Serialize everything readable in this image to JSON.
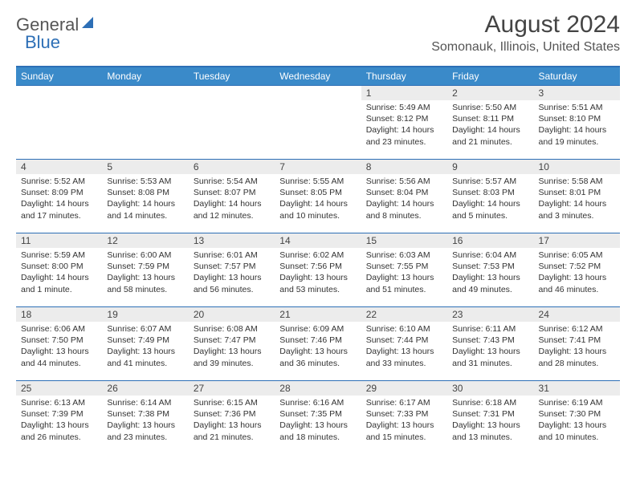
{
  "logo": {
    "general": "General",
    "blue": "Blue",
    "accent": "#2d6fb6"
  },
  "title": "August 2024",
  "location": "Somonauk, Illinois, United States",
  "colors": {
    "header_bg": "#3a8ac9",
    "header_text": "#ffffff",
    "row_border": "#2d6fb6",
    "daynum_bg": "#ececec",
    "text": "#333333"
  },
  "dayHeaders": [
    "Sunday",
    "Monday",
    "Tuesday",
    "Wednesday",
    "Thursday",
    "Friday",
    "Saturday"
  ],
  "weeks": [
    [
      null,
      null,
      null,
      null,
      {
        "n": "1",
        "sr": "5:49 AM",
        "ss": "8:12 PM",
        "dl": "14 hours and 23 minutes."
      },
      {
        "n": "2",
        "sr": "5:50 AM",
        "ss": "8:11 PM",
        "dl": "14 hours and 21 minutes."
      },
      {
        "n": "3",
        "sr": "5:51 AM",
        "ss": "8:10 PM",
        "dl": "14 hours and 19 minutes."
      }
    ],
    [
      {
        "n": "4",
        "sr": "5:52 AM",
        "ss": "8:09 PM",
        "dl": "14 hours and 17 minutes."
      },
      {
        "n": "5",
        "sr": "5:53 AM",
        "ss": "8:08 PM",
        "dl": "14 hours and 14 minutes."
      },
      {
        "n": "6",
        "sr": "5:54 AM",
        "ss": "8:07 PM",
        "dl": "14 hours and 12 minutes."
      },
      {
        "n": "7",
        "sr": "5:55 AM",
        "ss": "8:05 PM",
        "dl": "14 hours and 10 minutes."
      },
      {
        "n": "8",
        "sr": "5:56 AM",
        "ss": "8:04 PM",
        "dl": "14 hours and 8 minutes."
      },
      {
        "n": "9",
        "sr": "5:57 AM",
        "ss": "8:03 PM",
        "dl": "14 hours and 5 minutes."
      },
      {
        "n": "10",
        "sr": "5:58 AM",
        "ss": "8:01 PM",
        "dl": "14 hours and 3 minutes."
      }
    ],
    [
      {
        "n": "11",
        "sr": "5:59 AM",
        "ss": "8:00 PM",
        "dl": "14 hours and 1 minute."
      },
      {
        "n": "12",
        "sr": "6:00 AM",
        "ss": "7:59 PM",
        "dl": "13 hours and 58 minutes."
      },
      {
        "n": "13",
        "sr": "6:01 AM",
        "ss": "7:57 PM",
        "dl": "13 hours and 56 minutes."
      },
      {
        "n": "14",
        "sr": "6:02 AM",
        "ss": "7:56 PM",
        "dl": "13 hours and 53 minutes."
      },
      {
        "n": "15",
        "sr": "6:03 AM",
        "ss": "7:55 PM",
        "dl": "13 hours and 51 minutes."
      },
      {
        "n": "16",
        "sr": "6:04 AM",
        "ss": "7:53 PM",
        "dl": "13 hours and 49 minutes."
      },
      {
        "n": "17",
        "sr": "6:05 AM",
        "ss": "7:52 PM",
        "dl": "13 hours and 46 minutes."
      }
    ],
    [
      {
        "n": "18",
        "sr": "6:06 AM",
        "ss": "7:50 PM",
        "dl": "13 hours and 44 minutes."
      },
      {
        "n": "19",
        "sr": "6:07 AM",
        "ss": "7:49 PM",
        "dl": "13 hours and 41 minutes."
      },
      {
        "n": "20",
        "sr": "6:08 AM",
        "ss": "7:47 PM",
        "dl": "13 hours and 39 minutes."
      },
      {
        "n": "21",
        "sr": "6:09 AM",
        "ss": "7:46 PM",
        "dl": "13 hours and 36 minutes."
      },
      {
        "n": "22",
        "sr": "6:10 AM",
        "ss": "7:44 PM",
        "dl": "13 hours and 33 minutes."
      },
      {
        "n": "23",
        "sr": "6:11 AM",
        "ss": "7:43 PM",
        "dl": "13 hours and 31 minutes."
      },
      {
        "n": "24",
        "sr": "6:12 AM",
        "ss": "7:41 PM",
        "dl": "13 hours and 28 minutes."
      }
    ],
    [
      {
        "n": "25",
        "sr": "6:13 AM",
        "ss": "7:39 PM",
        "dl": "13 hours and 26 minutes."
      },
      {
        "n": "26",
        "sr": "6:14 AM",
        "ss": "7:38 PM",
        "dl": "13 hours and 23 minutes."
      },
      {
        "n": "27",
        "sr": "6:15 AM",
        "ss": "7:36 PM",
        "dl": "13 hours and 21 minutes."
      },
      {
        "n": "28",
        "sr": "6:16 AM",
        "ss": "7:35 PM",
        "dl": "13 hours and 18 minutes."
      },
      {
        "n": "29",
        "sr": "6:17 AM",
        "ss": "7:33 PM",
        "dl": "13 hours and 15 minutes."
      },
      {
        "n": "30",
        "sr": "6:18 AM",
        "ss": "7:31 PM",
        "dl": "13 hours and 13 minutes."
      },
      {
        "n": "31",
        "sr": "6:19 AM",
        "ss": "7:30 PM",
        "dl": "13 hours and 10 minutes."
      }
    ]
  ],
  "labels": {
    "sunrise": "Sunrise: ",
    "sunset": "Sunset: ",
    "daylight": "Daylight: "
  }
}
